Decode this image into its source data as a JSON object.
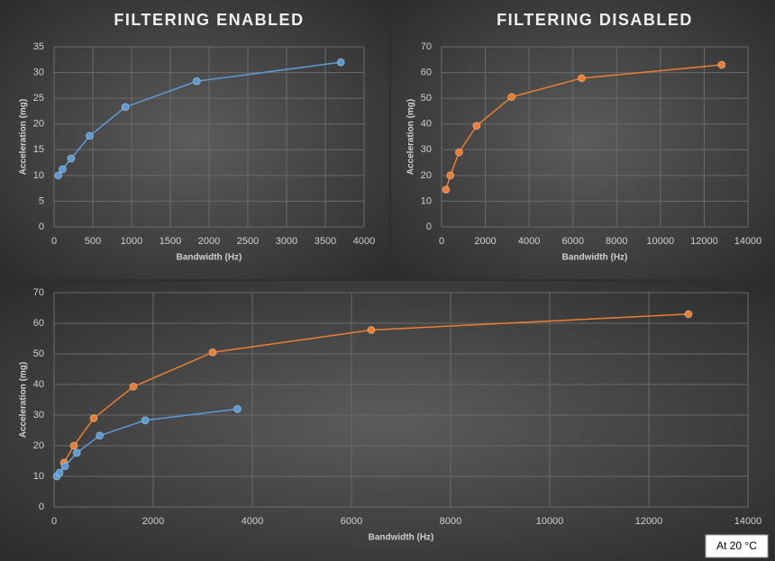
{
  "chart_data": [
    {
      "type": "line",
      "title": "FILTERING ENABLED",
      "xlabel": "Bandwidth (Hz)",
      "ylabel": "Acceleration (mg)",
      "xlim": [
        0,
        4000
      ],
      "xticks": [
        0,
        500,
        1000,
        1500,
        2000,
        2500,
        3000,
        3500,
        4000
      ],
      "ylim": [
        0,
        35
      ],
      "yticks": [
        0,
        5,
        10,
        15,
        20,
        25,
        30,
        35
      ],
      "grid": true,
      "series": [
        {
          "color": "#5b9bd5",
          "x": [
            55,
            110,
            220,
            460,
            920,
            1840,
            3700
          ],
          "values": [
            10,
            11.2,
            13.3,
            17.7,
            23.3,
            28.3,
            32
          ]
        }
      ]
    },
    {
      "type": "line",
      "title": "FILTERING DISABLED",
      "xlabel": "Bandwidth (Hz)",
      "ylabel": "Acceleration (mg)",
      "xlim": [
        0,
        14000
      ],
      "xticks": [
        0,
        2000,
        4000,
        6000,
        8000,
        10000,
        12000,
        14000
      ],
      "ylim": [
        0,
        70
      ],
      "yticks": [
        0,
        10,
        20,
        30,
        40,
        50,
        60,
        70
      ],
      "grid": true,
      "series": [
        {
          "color": "#ed7d31",
          "x": [
            200,
            400,
            800,
            1600,
            3200,
            6400,
            12800
          ],
          "values": [
            14.5,
            20,
            29,
            39.3,
            50.5,
            57.8,
            63
          ]
        }
      ]
    },
    {
      "type": "line",
      "xlabel": "Bandwidth (Hz)",
      "ylabel": "Acceleration (mg)",
      "xlim": [
        0,
        14000
      ],
      "xticks": [
        0,
        2000,
        4000,
        6000,
        8000,
        10000,
        12000,
        14000
      ],
      "ylim": [
        0,
        70
      ],
      "yticks": [
        0,
        10,
        20,
        30,
        40,
        50,
        60,
        70
      ],
      "grid": true,
      "annotation": "At 20 °C",
      "series": [
        {
          "color": "#ed7d31",
          "x": [
            200,
            400,
            800,
            1600,
            3200,
            6400,
            12800
          ],
          "values": [
            14.5,
            20,
            29,
            39.3,
            50.5,
            57.8,
            63
          ]
        },
        {
          "color": "#5b9bd5",
          "x": [
            55,
            110,
            220,
            460,
            920,
            1840,
            3700
          ],
          "values": [
            10,
            11.2,
            13.3,
            17.7,
            23.3,
            28.3,
            32
          ]
        }
      ]
    }
  ]
}
